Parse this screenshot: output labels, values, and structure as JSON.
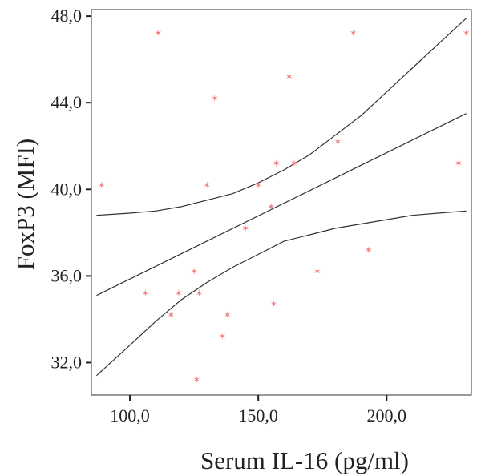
{
  "chart_data": {
    "type": "scatter",
    "xlabel": "Serum IL-16 (pg/ml)",
    "ylabel": "FoxP3 (MFI)",
    "xlim": [
      85,
      233
    ],
    "ylim": [
      30.5,
      48.3
    ],
    "x_ticks": [
      100,
      150,
      200
    ],
    "x_tick_labels": [
      "100,0",
      "150,0",
      "200,0"
    ],
    "y_ticks": [
      32,
      36,
      40,
      44,
      48
    ],
    "y_tick_labels": [
      "32,0",
      "36,0",
      "40,0",
      "44,0",
      "48,0"
    ],
    "grid": false,
    "marker_color": "#f08080",
    "line_color": "#333333",
    "points": [
      {
        "x": 89,
        "y": 40.2
      },
      {
        "x": 106,
        "y": 35.2
      },
      {
        "x": 111,
        "y": 47.2
      },
      {
        "x": 116,
        "y": 34.2
      },
      {
        "x": 119,
        "y": 35.2
      },
      {
        "x": 125,
        "y": 36.2
      },
      {
        "x": 126,
        "y": 31.2
      },
      {
        "x": 127,
        "y": 35.2
      },
      {
        "x": 130,
        "y": 40.2
      },
      {
        "x": 133,
        "y": 44.2
      },
      {
        "x": 136,
        "y": 33.2
      },
      {
        "x": 138,
        "y": 34.2
      },
      {
        "x": 145,
        "y": 38.2
      },
      {
        "x": 150,
        "y": 40.2
      },
      {
        "x": 155,
        "y": 39.2
      },
      {
        "x": 156,
        "y": 34.7
      },
      {
        "x": 157,
        "y": 41.2
      },
      {
        "x": 162,
        "y": 45.2
      },
      {
        "x": 164,
        "y": 41.2
      },
      {
        "x": 173,
        "y": 36.2
      },
      {
        "x": 181,
        "y": 42.2
      },
      {
        "x": 187,
        "y": 47.2
      },
      {
        "x": 193,
        "y": 37.2
      },
      {
        "x": 228,
        "y": 41.2
      },
      {
        "x": 231,
        "y": 47.2
      }
    ],
    "fit_line": {
      "x": [
        87,
        231
      ],
      "y": [
        35.1,
        43.5
      ]
    },
    "ci_upper": {
      "x": [
        87,
        100,
        110,
        120,
        130,
        140,
        150,
        160,
        170,
        180,
        190,
        200,
        210,
        220,
        231
      ],
      "y": [
        38.8,
        38.9,
        39.0,
        39.2,
        39.5,
        39.8,
        40.3,
        40.9,
        41.6,
        42.5,
        43.4,
        44.5,
        45.6,
        46.7,
        47.9
      ]
    },
    "ci_lower": {
      "x": [
        87,
        100,
        110,
        120,
        130,
        140,
        150,
        160,
        170,
        180,
        190,
        200,
        210,
        220,
        231
      ],
      "y": [
        31.4,
        32.8,
        33.9,
        34.9,
        35.7,
        36.4,
        37.0,
        37.6,
        37.9,
        38.2,
        38.4,
        38.6,
        38.8,
        38.9,
        39.0
      ]
    }
  }
}
